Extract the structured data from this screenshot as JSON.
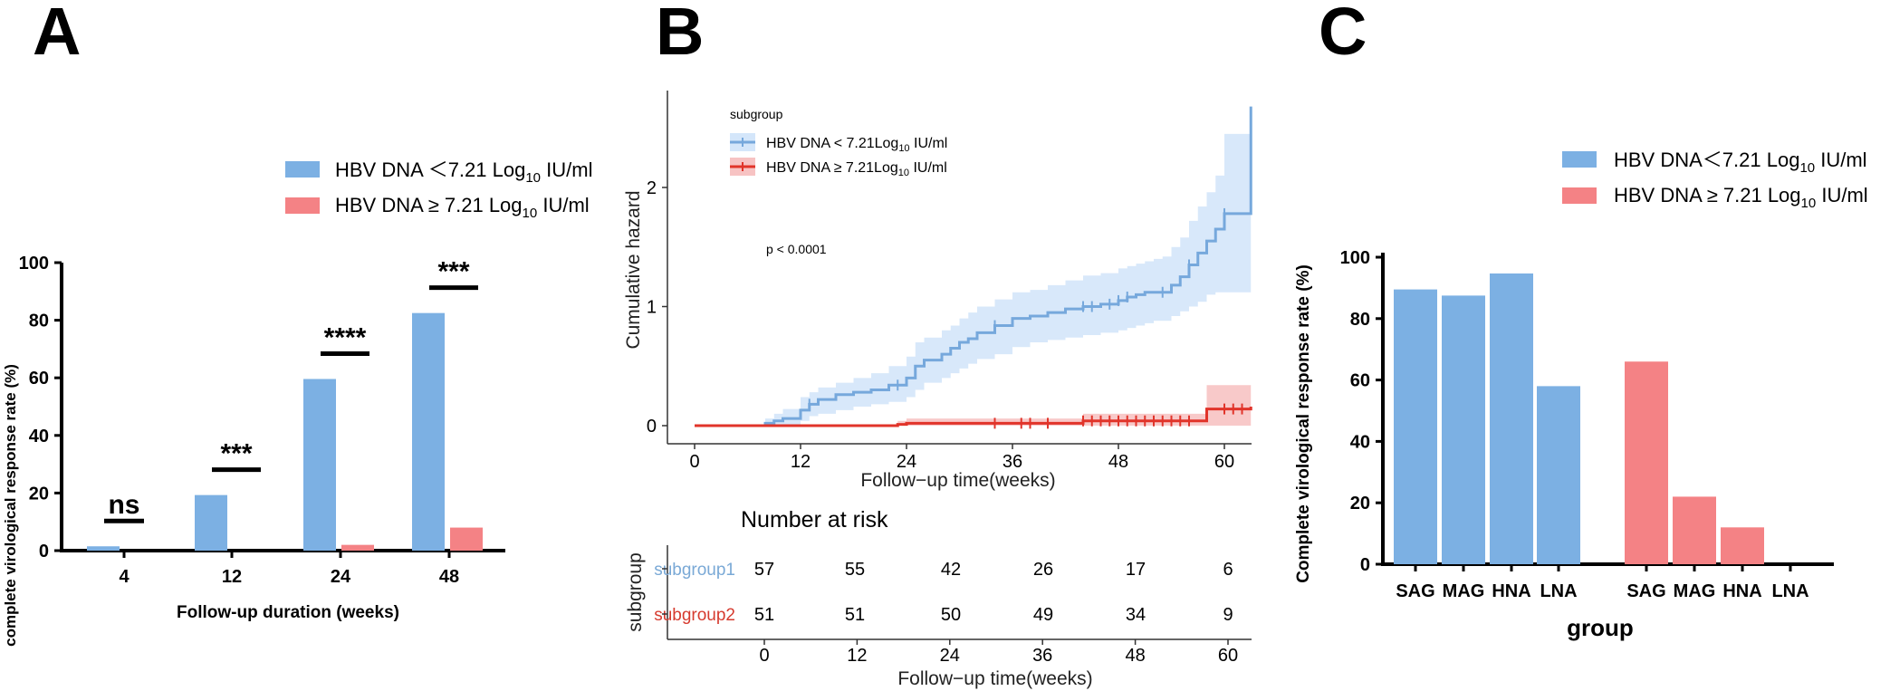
{
  "panels": {
    "a": "A",
    "b": "B",
    "c": "C"
  },
  "colors": {
    "blue": "#7cb0e3",
    "red": "#f48285",
    "km_blue": "#76a8dc",
    "km_red": "#e1342a",
    "band_blue": "#d4e6fa",
    "band_red": "#f7c3c3",
    "risk_blue": "#7aa9d6",
    "risk_red": "#d63b2f"
  },
  "chart_data": [
    {
      "type": "bar",
      "title": "",
      "xlabel": "Follow-up duration (weeks)",
      "ylabel": "complete virological response rate (%)",
      "ylim": [
        0,
        100
      ],
      "yticks": [
        "0",
        "20",
        "40",
        "60",
        "80",
        "100"
      ],
      "categories": [
        "4",
        "12",
        "24",
        "48"
      ],
      "series": [
        {
          "name": "HBV DNA ＜7.21 Log10 IU/ml",
          "legend_main": "HBV DNA ＜7.21 Log",
          "legend_sub": "10",
          "legend_tail": " IU/ml",
          "values": [
            1.5,
            19.3,
            59.6,
            82.5
          ]
        },
        {
          "name": "HBV DNA ≥ 7.21 Log10 IU/ml",
          "legend_main": "HBV DNA ≥ 7.21 Log",
          "legend_sub": "10",
          "legend_tail": " IU/ml",
          "values": [
            0,
            0,
            2,
            8
          ]
        }
      ],
      "significance": [
        "ns",
        "***",
        "****",
        "***"
      ]
    },
    {
      "type": "line",
      "title": "",
      "xlabel": "Follow−up time(weeks)",
      "ylabel": "Cumulative hazard",
      "xlim": [
        0,
        63
      ],
      "ylim": [
        -0.1,
        2.8
      ],
      "xticks": [
        "0",
        "12",
        "24",
        "36",
        "48",
        "60"
      ],
      "yticks": [
        "0",
        "1",
        "2"
      ],
      "legend_title": "subgroup",
      "p_value": "p < 0.0001",
      "series": [
        {
          "name": "HBV DNA < 7.21Log10 IU/ml",
          "legend_main": "HBV DNA < 7.21Log",
          "legend_sub": "10",
          "legend_tail": " IU/ml",
          "x": [
            0,
            8,
            9,
            10,
            12,
            13,
            14,
            16,
            18,
            20,
            22,
            24,
            25,
            26,
            28,
            29,
            30,
            31,
            32,
            34,
            36,
            38,
            40,
            42,
            44,
            46,
            48,
            49,
            50,
            51,
            52,
            53,
            54,
            55,
            56,
            57,
            58,
            59,
            60,
            62,
            63
          ],
          "y": [
            0,
            0.02,
            0.04,
            0.06,
            0.13,
            0.18,
            0.22,
            0.26,
            0.28,
            0.3,
            0.34,
            0.4,
            0.5,
            0.55,
            0.6,
            0.65,
            0.7,
            0.73,
            0.78,
            0.84,
            0.9,
            0.92,
            0.95,
            0.98,
            1.0,
            1.02,
            1.05,
            1.08,
            1.1,
            1.12,
            1.12,
            1.12,
            1.18,
            1.25,
            1.35,
            1.45,
            1.55,
            1.65,
            1.78,
            1.78,
            2.68
          ],
          "lower": [
            0,
            0,
            0,
            0,
            0.04,
            0.08,
            0.1,
            0.13,
            0.16,
            0.18,
            0.2,
            0.24,
            0.3,
            0.36,
            0.4,
            0.44,
            0.48,
            0.52,
            0.56,
            0.6,
            0.66,
            0.7,
            0.72,
            0.74,
            0.76,
            0.78,
            0.8,
            0.82,
            0.84,
            0.86,
            0.88,
            0.88,
            0.92,
            0.96,
            1.0,
            1.04,
            1.1,
            1.12,
            1.12,
            1.12,
            1.12
          ],
          "upper": [
            0,
            0.06,
            0.1,
            0.14,
            0.24,
            0.28,
            0.32,
            0.36,
            0.4,
            0.44,
            0.5,
            0.58,
            0.7,
            0.74,
            0.8,
            0.84,
            0.9,
            0.95,
            1.0,
            1.06,
            1.12,
            1.14,
            1.18,
            1.22,
            1.26,
            1.28,
            1.32,
            1.34,
            1.36,
            1.38,
            1.4,
            1.42,
            1.5,
            1.58,
            1.72,
            1.84,
            1.96,
            2.1,
            2.45,
            2.45,
            2.45
          ]
        },
        {
          "name": "HBV DNA ≥ 7.21Log10 IU/ml",
          "legend_main": "HBV DNA ≥ 7.21Log",
          "legend_sub": "10",
          "legend_tail": " IU/ml",
          "x": [
            0,
            23,
            24,
            44,
            58,
            63
          ],
          "y": [
            0,
            0.01,
            0.02,
            0.04,
            0.14,
            0.16
          ],
          "lower": [
            0,
            0,
            0,
            0,
            0,
            0
          ],
          "upper": [
            0,
            0.04,
            0.06,
            0.1,
            0.34,
            0.36
          ]
        }
      ],
      "censor_marks": {
        "subgroup1": [
          13,
          23,
          34,
          44,
          45,
          47,
          48,
          49,
          53,
          56,
          60
        ],
        "subgroup2": [
          34,
          37,
          38,
          40,
          44,
          45,
          46,
          47,
          48,
          49,
          50,
          51,
          52,
          53,
          54,
          55,
          56,
          60,
          61,
          62
        ]
      },
      "risk_table": {
        "title": "Number at risk",
        "ylabel": "subgroup",
        "xlabel": "Follow−up time(weeks)",
        "xticks": [
          "0",
          "12",
          "24",
          "36",
          "48",
          "60"
        ],
        "rows": [
          {
            "label": "subgroup1",
            "values": [
              "57",
              "55",
              "42",
              "26",
              "17",
              "6"
            ]
          },
          {
            "label": "subgroup2",
            "values": [
              "51",
              "51",
              "50",
              "49",
              "34",
              "9"
            ]
          }
        ]
      }
    },
    {
      "type": "bar",
      "title": "",
      "xlabel": "group",
      "ylabel": "Complete virological response rate (%)",
      "ylim": [
        0,
        100
      ],
      "yticks": [
        "0",
        "20",
        "40",
        "60",
        "80",
        "100"
      ],
      "categories": [
        "SAG",
        "MAG",
        "HNA",
        "LNA"
      ],
      "series": [
        {
          "name": "HBV DNA＜7.21 Log10 IU/ml",
          "legend_main": "HBV DNA＜7.21 Log",
          "legend_sub": "10",
          "legend_tail": " IU/ml",
          "values": [
            89.5,
            87.5,
            94.7,
            58
          ]
        },
        {
          "name": "HBV DNA ≥ 7.21 Log10 IU/ml",
          "legend_main": "HBV DNA ≥ 7.21 Log",
          "legend_sub": "10",
          "legend_tail": " IU/ml",
          "values": [
            66,
            22,
            12,
            0
          ]
        }
      ]
    }
  ]
}
